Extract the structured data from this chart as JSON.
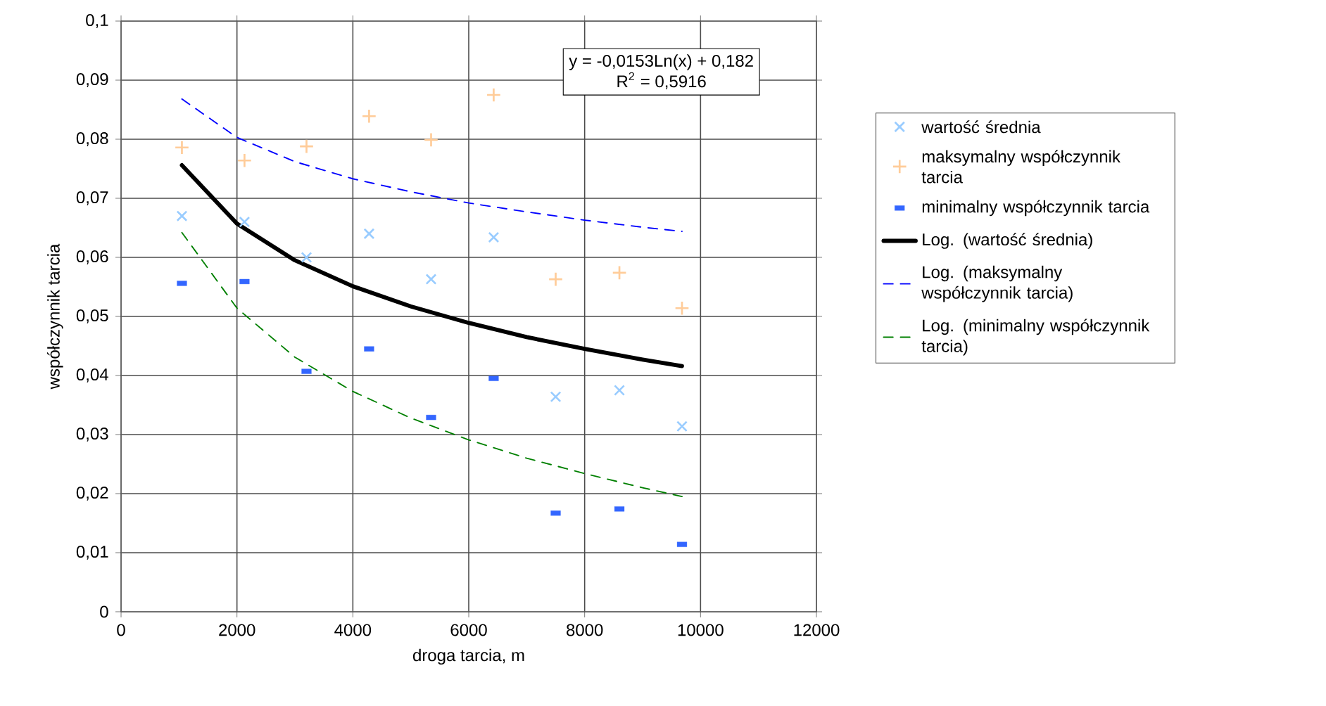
{
  "chart_data": {
    "type": "scatter",
    "xlabel": "droga tarcia, m",
    "ylabel": "współczynnik tarcia",
    "xlim": [
      0,
      12000
    ],
    "xticks": [
      0,
      2000,
      4000,
      6000,
      8000,
      10000,
      12000
    ],
    "ylim": [
      0,
      0.1
    ],
    "yticks": [
      0,
      {
        "value": 0.01,
        "label": "0,01"
      },
      {
        "value": 0.02,
        "label": "0,02"
      },
      {
        "value": 0.03,
        "label": "0,03"
      },
      {
        "value": 0.04,
        "label": "0,04"
      },
      {
        "value": 0.05,
        "label": "0,05"
      },
      {
        "value": 0.06,
        "label": "0,06"
      },
      {
        "value": 0.07,
        "label": "0,07"
      },
      {
        "value": 0.08,
        "label": "0,08"
      },
      {
        "value": 0.09,
        "label": "0,09"
      },
      {
        "value": 0.1,
        "label": "0,1"
      }
    ],
    "grid": true,
    "legend": "right",
    "annotations": [
      "y = -0,0153Ln(x) + 0,182",
      "R$^{2}$ = 0,5916"
    ],
    "series": [
      {
        "name": "wartość średnia",
        "marker": "cross",
        "color": "#99ccff",
        "x": [
          1050,
          2130,
          3200,
          4280,
          5350,
          6430,
          7500,
          8600,
          9680
        ],
        "values": [
          0.067,
          0.066,
          0.06,
          0.064,
          0.0563,
          0.0634,
          0.0364,
          0.0375,
          0.0314
        ]
      },
      {
        "name": "maksymalny współczynnik tarcia",
        "marker": "plus",
        "color": "#ffcc99",
        "x": [
          1050,
          2130,
          3200,
          4280,
          5350,
          6430,
          7500,
          8600,
          9680
        ],
        "values": [
          0.0786,
          0.0764,
          0.0788,
          0.0839,
          0.0799,
          0.0875,
          0.0563,
          0.0574,
          0.0514
        ]
      },
      {
        "name": "minimalny współczynnik tarcia",
        "marker": "square",
        "color": "#3366ff",
        "x": [
          1050,
          2130,
          3200,
          4280,
          5350,
          6430,
          7500,
          8600,
          9680
        ],
        "values": [
          0.0556,
          0.0559,
          0.0407,
          0.0445,
          0.0329,
          0.0395,
          0.0167,
          0.0174,
          0.0114
        ]
      },
      {
        "name": "Log. (wartość średnia)",
        "type": "line",
        "line_style": "solid",
        "color": "#000000",
        "x": [
          1050,
          2000,
          3000,
          4000,
          5000,
          6000,
          7000,
          8000,
          9000,
          9680
        ],
        "values": [
          0.0756,
          0.0657,
          0.0595,
          0.0551,
          0.0517,
          0.0489,
          0.0465,
          0.0445,
          0.0427,
          0.0416
        ]
      },
      {
        "name": "Log. (maksymalny współczynnik tarcia)",
        "type": "line",
        "line_style": "dashed",
        "color": "#0000ff",
        "x": [
          1050,
          2000,
          3000,
          4000,
          5000,
          6000,
          7000,
          8000,
          9000,
          9680
        ],
        "values": [
          0.0868,
          0.0803,
          0.0762,
          0.0733,
          0.0711,
          0.0692,
          0.0677,
          0.0663,
          0.0651,
          0.0644
        ]
      },
      {
        "name": "Log. (minimalny współczynnik tarcia)",
        "type": "line",
        "line_style": "dashed",
        "color": "#008000",
        "x": [
          1050,
          2000,
          3000,
          4000,
          5000,
          6000,
          7000,
          8000,
          9000,
          9680
        ],
        "values": [
          0.0642,
          0.0514,
          0.0431,
          0.0373,
          0.0328,
          0.0291,
          0.026,
          0.0234,
          0.021,
          0.0195
        ]
      }
    ]
  }
}
